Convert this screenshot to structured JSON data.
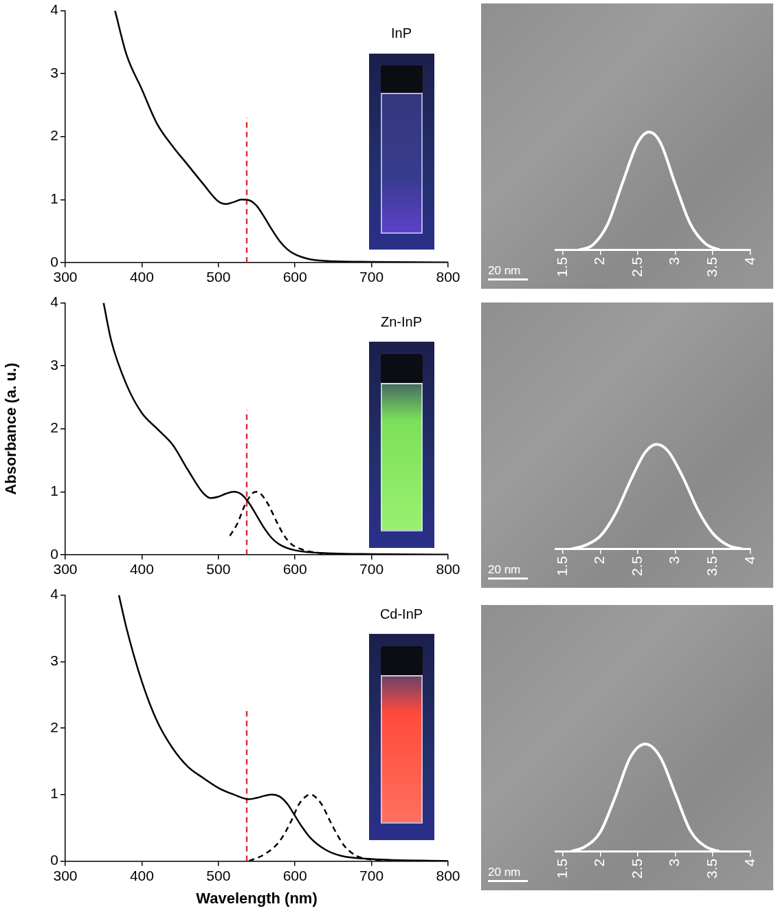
{
  "chart_data": [
    {
      "type": "line",
      "title": "InP",
      "xlim": [
        300,
        800
      ],
      "xticks": [
        300,
        400,
        500,
        600,
        700,
        800
      ],
      "ylim": [
        0,
        4
      ],
      "yticks": [
        0,
        1,
        2,
        3,
        4
      ],
      "grid": false,
      "series": [
        {
          "color": "#000000",
          "line_style": "solid",
          "x": [
            365,
            380,
            400,
            420,
            440,
            460,
            480,
            500,
            510,
            520,
            530,
            540,
            550,
            560,
            570,
            580,
            590,
            600,
            620,
            650,
            700,
            800
          ],
          "values": [
            4.0,
            3.3,
            2.75,
            2.2,
            1.85,
            1.55,
            1.25,
            0.97,
            0.93,
            0.96,
            1.0,
            0.99,
            0.9,
            0.72,
            0.52,
            0.34,
            0.21,
            0.13,
            0.05,
            0.02,
            0.01,
            0.0
          ]
        },
        {
          "color": "#e03030",
          "line_style": "dashed",
          "x": [
            537,
            537
          ],
          "values": [
            0,
            2.3
          ]
        }
      ]
    },
    {
      "type": "line",
      "title": "Zn-InP",
      "y_label": "Absorbance (a. u.)",
      "xlim": [
        300,
        800
      ],
      "xticks": [
        300,
        400,
        500,
        600,
        700,
        800
      ],
      "ylim": [
        0,
        4
      ],
      "yticks": [
        0,
        1,
        2,
        3,
        4
      ],
      "grid": false,
      "series": [
        {
          "color": "#000000",
          "line_style": "solid",
          "x": [
            350,
            360,
            380,
            400,
            420,
            440,
            460,
            480,
            490,
            500,
            510,
            520,
            530,
            540,
            550,
            560,
            570,
            580,
            600,
            650,
            700,
            800
          ],
          "values": [
            4.0,
            3.4,
            2.7,
            2.25,
            2.0,
            1.75,
            1.35,
            0.98,
            0.9,
            0.92,
            0.97,
            1.0,
            0.96,
            0.82,
            0.62,
            0.42,
            0.26,
            0.16,
            0.07,
            0.02,
            0.01,
            0.0
          ]
        },
        {
          "color": "#000000",
          "line_style": "dashed",
          "x": [
            515,
            525,
            535,
            545,
            550,
            555,
            565,
            575,
            585,
            595,
            610,
            630,
            660,
            700
          ],
          "values": [
            0.3,
            0.5,
            0.8,
            0.98,
            1.0,
            0.97,
            0.8,
            0.55,
            0.32,
            0.17,
            0.08,
            0.03,
            0.01,
            0.0
          ]
        },
        {
          "color": "#e03030",
          "line_style": "dashed",
          "x": [
            537,
            537
          ],
          "values": [
            0,
            2.3
          ]
        }
      ]
    },
    {
      "type": "line",
      "title": "Cd-InP",
      "x_label": "Wavelength (nm)",
      "xlim": [
        300,
        800
      ],
      "xticks": [
        300,
        400,
        500,
        600,
        700,
        800
      ],
      "ylim": [
        0,
        4
      ],
      "yticks": [
        0,
        1,
        2,
        3,
        4
      ],
      "grid": false,
      "series": [
        {
          "color": "#000000",
          "line_style": "solid",
          "x": [
            370,
            380,
            400,
            420,
            440,
            460,
            480,
            500,
            520,
            540,
            550,
            560,
            570,
            580,
            590,
            600,
            610,
            620,
            640,
            660,
            700,
            800
          ],
          "values": [
            4.0,
            3.5,
            2.7,
            2.1,
            1.7,
            1.42,
            1.25,
            1.1,
            1.0,
            0.93,
            0.95,
            0.98,
            1.0,
            0.97,
            0.86,
            0.68,
            0.5,
            0.35,
            0.17,
            0.08,
            0.03,
            0.0
          ]
        },
        {
          "color": "#000000",
          "line_style": "dashed",
          "x": [
            540,
            560,
            580,
            595,
            605,
            615,
            620,
            625,
            635,
            645,
            655,
            665,
            680,
            700,
            720
          ],
          "values": [
            0.0,
            0.1,
            0.3,
            0.6,
            0.85,
            0.98,
            1.0,
            0.98,
            0.85,
            0.62,
            0.4,
            0.22,
            0.08,
            0.02,
            0.0
          ]
        },
        {
          "color": "#e03030",
          "line_style": "dashed",
          "x": [
            537,
            537
          ],
          "values": [
            0,
            2.3
          ]
        }
      ]
    },
    {
      "type": "line",
      "annotations": [
        "20 nm"
      ],
      "xlim": [
        1.4,
        4
      ],
      "xticks": [
        1.5,
        2,
        2.5,
        3,
        3.5,
        4
      ],
      "ylim": [
        0,
        1
      ],
      "grid": false,
      "tick_labels": "x",
      "series": [
        {
          "color": "#ffffff",
          "line_style": "solid",
          "x": [
            1.7,
            1.9,
            2.1,
            2.3,
            2.5,
            2.65,
            2.8,
            3.0,
            3.2,
            3.4,
            3.6
          ],
          "values": [
            0.0,
            0.04,
            0.2,
            0.52,
            0.82,
            0.9,
            0.82,
            0.5,
            0.2,
            0.05,
            0.0
          ]
        }
      ]
    },
    {
      "type": "line",
      "annotations": [
        "20 nm"
      ],
      "xlim": [
        1.4,
        4
      ],
      "xticks": [
        1.5,
        2,
        2.5,
        3,
        3.5,
        4
      ],
      "ylim": [
        0,
        1
      ],
      "grid": false,
      "tick_labels": "x",
      "series": [
        {
          "color": "#ffffff",
          "line_style": "solid",
          "x": [
            1.6,
            1.8,
            2.0,
            2.2,
            2.4,
            2.6,
            2.75,
            2.9,
            3.1,
            3.3,
            3.5,
            3.7,
            3.9
          ],
          "values": [
            0.0,
            0.03,
            0.1,
            0.27,
            0.52,
            0.74,
            0.8,
            0.75,
            0.55,
            0.3,
            0.12,
            0.03,
            0.0
          ]
        }
      ]
    },
    {
      "type": "line",
      "annotations": [
        "20 nm"
      ],
      "xlim": [
        1.4,
        4
      ],
      "xticks": [
        1.5,
        2,
        2.5,
        3,
        3.5,
        4
      ],
      "ylim": [
        0,
        1
      ],
      "grid": false,
      "tick_labels": "x",
      "series": [
        {
          "color": "#ffffff",
          "line_style": "solid",
          "x": [
            1.6,
            1.8,
            2.0,
            2.2,
            2.4,
            2.6,
            2.8,
            3.0,
            3.2,
            3.4,
            3.6
          ],
          "values": [
            0.0,
            0.04,
            0.15,
            0.42,
            0.72,
            0.82,
            0.72,
            0.44,
            0.16,
            0.04,
            0.0
          ]
        }
      ]
    }
  ]
}
